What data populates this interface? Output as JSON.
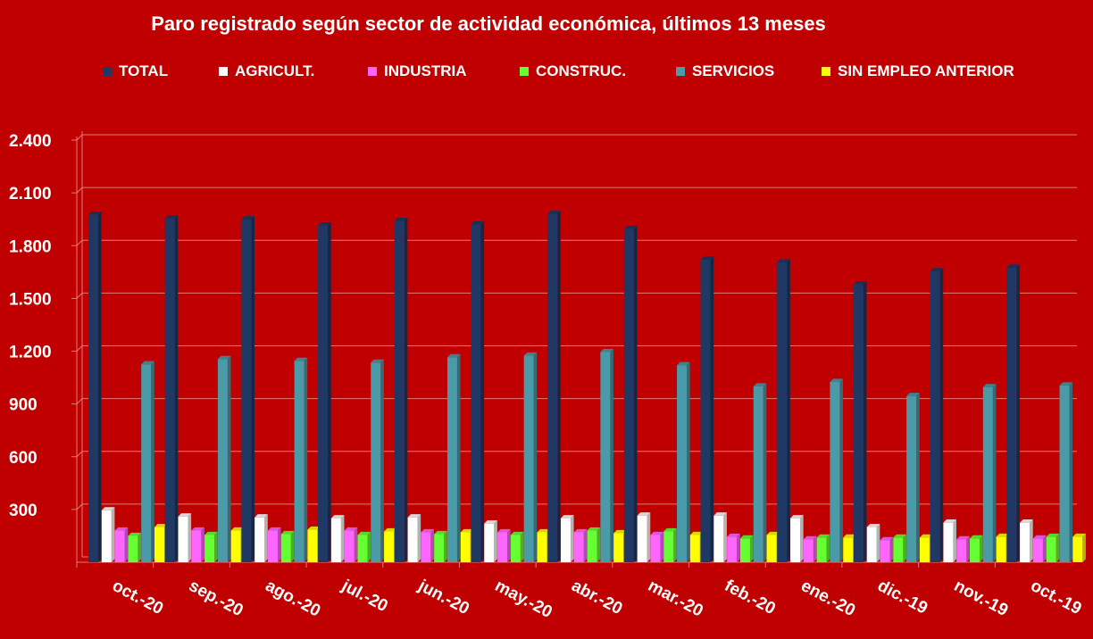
{
  "chart_data": {
    "type": "bar",
    "title": "Paro registrado según sector de actividad económica, últimos 13 meses",
    "xlabel": "",
    "ylabel": "",
    "ylim": [
      0,
      2400
    ],
    "yticks": [
      "2.400",
      "2.100",
      "1.800",
      "1.500",
      "1.200",
      "900",
      "600",
      "300"
    ],
    "ytick_values": [
      2400,
      2100,
      1800,
      1500,
      1200,
      900,
      600,
      300
    ],
    "grid": true,
    "legend_position": "top",
    "categories": [
      "oct.-20",
      "sep.-20",
      "ago.-20",
      "jul.-20",
      "jun.-20",
      "may.-20",
      "abr.-20",
      "mar.-20",
      "feb.-20",
      "ene.-20",
      "dic.-19",
      "nov.-19",
      "oct.-19"
    ],
    "series": [
      {
        "name": "TOTAL",
        "color": "#1f3864",
        "values": [
          1975,
          1955,
          1950,
          1915,
          1940,
          1920,
          1980,
          1895,
          1720,
          1705,
          1580,
          1655,
          1675
        ]
      },
      {
        "name": "AGRICULT.",
        "color": "#ffffff",
        "values": [
          295,
          260,
          255,
          250,
          255,
          220,
          250,
          265,
          265,
          250,
          200,
          225,
          225
        ]
      },
      {
        "name": "INDUSTRIA",
        "color": "#ff66ff",
        "values": [
          180,
          180,
          180,
          180,
          170,
          170,
          170,
          155,
          145,
          130,
          125,
          130,
          135
        ]
      },
      {
        "name": "CONSTRUC.",
        "color": "#66ff33",
        "values": [
          150,
          155,
          160,
          155,
          160,
          155,
          180,
          175,
          135,
          140,
          140,
          135,
          145
        ]
      },
      {
        "name": "SERVICIOS",
        "color": "#4a9aa8",
        "values": [
          1125,
          1155,
          1145,
          1135,
          1165,
          1175,
          1195,
          1120,
          1000,
          1025,
          945,
          995,
          1005
        ]
      },
      {
        "name": "SIN EMPLEO ANTERIOR",
        "color": "#ffff00",
        "values": [
          200,
          180,
          185,
          175,
          170,
          170,
          165,
          155,
          155,
          140,
          140,
          145,
          145
        ]
      }
    ]
  }
}
